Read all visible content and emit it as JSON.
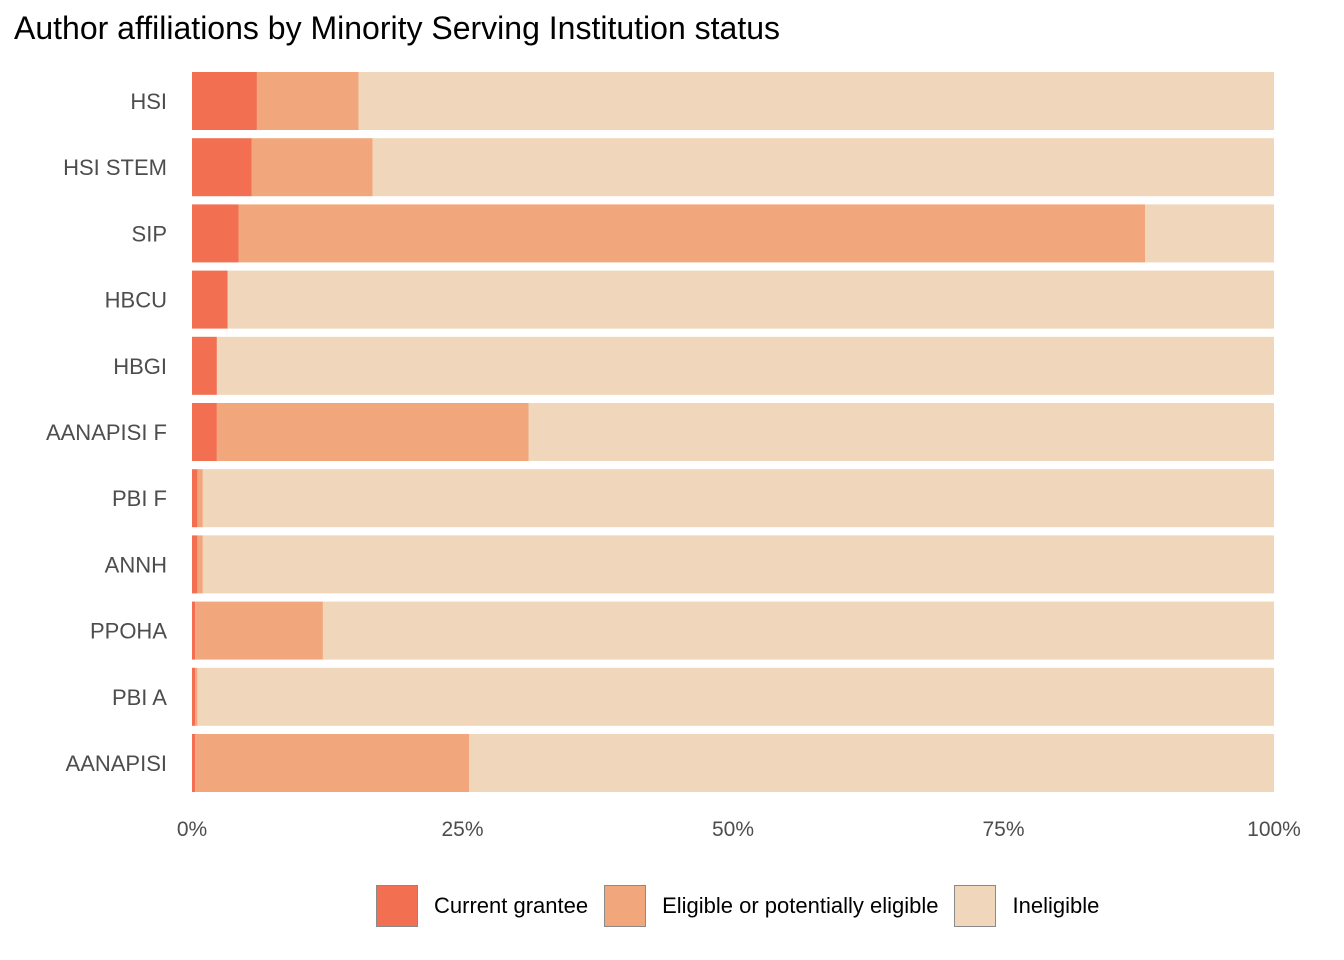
{
  "chart_data": {
    "type": "bar",
    "orientation": "horizontal",
    "stacked": true,
    "title": "Author affiliations by Minority Serving Institution status",
    "xlabel": "",
    "ylabel": "",
    "xlim": [
      0,
      100
    ],
    "x_ticks": [
      "0%",
      "25%",
      "50%",
      "75%",
      "100%"
    ],
    "categories": [
      "HSI",
      "HSI STEM",
      "SIP",
      "HBCU",
      "HBGI",
      "AANAPISI F",
      "PBI F",
      "ANNH",
      "PPOHA",
      "PBI A",
      "AANAPISI"
    ],
    "series": [
      {
        "name": "Current grantee",
        "color": "#F26F52",
        "values": [
          6.0,
          5.5,
          4.3,
          3.3,
          2.3,
          2.3,
          0.5,
          0.5,
          0.3,
          0.3,
          0.3
        ]
      },
      {
        "name": "Eligible or potentially eligible",
        "color": "#F2A67C",
        "values": [
          9.4,
          11.2,
          83.8,
          0.0,
          0.0,
          28.8,
          0.5,
          0.5,
          11.8,
          0.2,
          25.3
        ]
      },
      {
        "name": "Ineligible",
        "color": "#F0D6BA",
        "values": [
          84.6,
          83.3,
          11.9,
          96.7,
          97.7,
          68.9,
          99.0,
          99.0,
          87.9,
          99.5,
          74.4
        ]
      }
    ],
    "grid": false,
    "legend_position": "bottom"
  }
}
